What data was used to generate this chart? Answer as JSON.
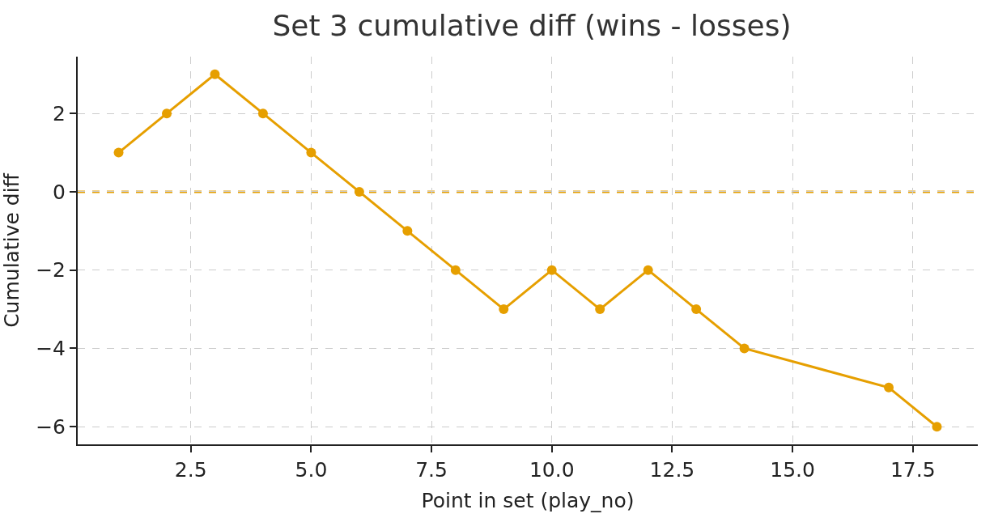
{
  "chart_data": {
    "type": "line",
    "title": "Set 3 cumulative diff (wins - losses)",
    "xlabel": "Point in set (play_no)",
    "ylabel": "Cumulative diff",
    "x": [
      1,
      2,
      3,
      4,
      5,
      6,
      7,
      8,
      9,
      10,
      11,
      12,
      13,
      14,
      17,
      18
    ],
    "series": [
      {
        "color": "#e69f00",
        "values": [
          1,
          2,
          3,
          2,
          1,
          0,
          -1,
          -2,
          -3,
          -2,
          -3,
          -2,
          -3,
          -4,
          -5,
          -6
        ]
      }
    ],
    "xlim": [
      0.15,
      18.85
    ],
    "ylim": [
      -6.45,
      3.45
    ],
    "xticks": [
      2.5,
      {
        "value": 5,
        "label": "5.0"
      },
      7.5,
      {
        "value": 10,
        "label": "10.0"
      },
      12.5,
      {
        "value": 15,
        "label": "15.0"
      },
      17.5
    ],
    "yticks": [
      -6,
      -4,
      -2,
      0,
      2
    ],
    "ref_lines": [
      {
        "axis": "y",
        "value": 0,
        "color": "#e69f00",
        "line_style": "dashed"
      }
    ],
    "grid": true,
    "marker": "circle",
    "line_style": "solid"
  }
}
